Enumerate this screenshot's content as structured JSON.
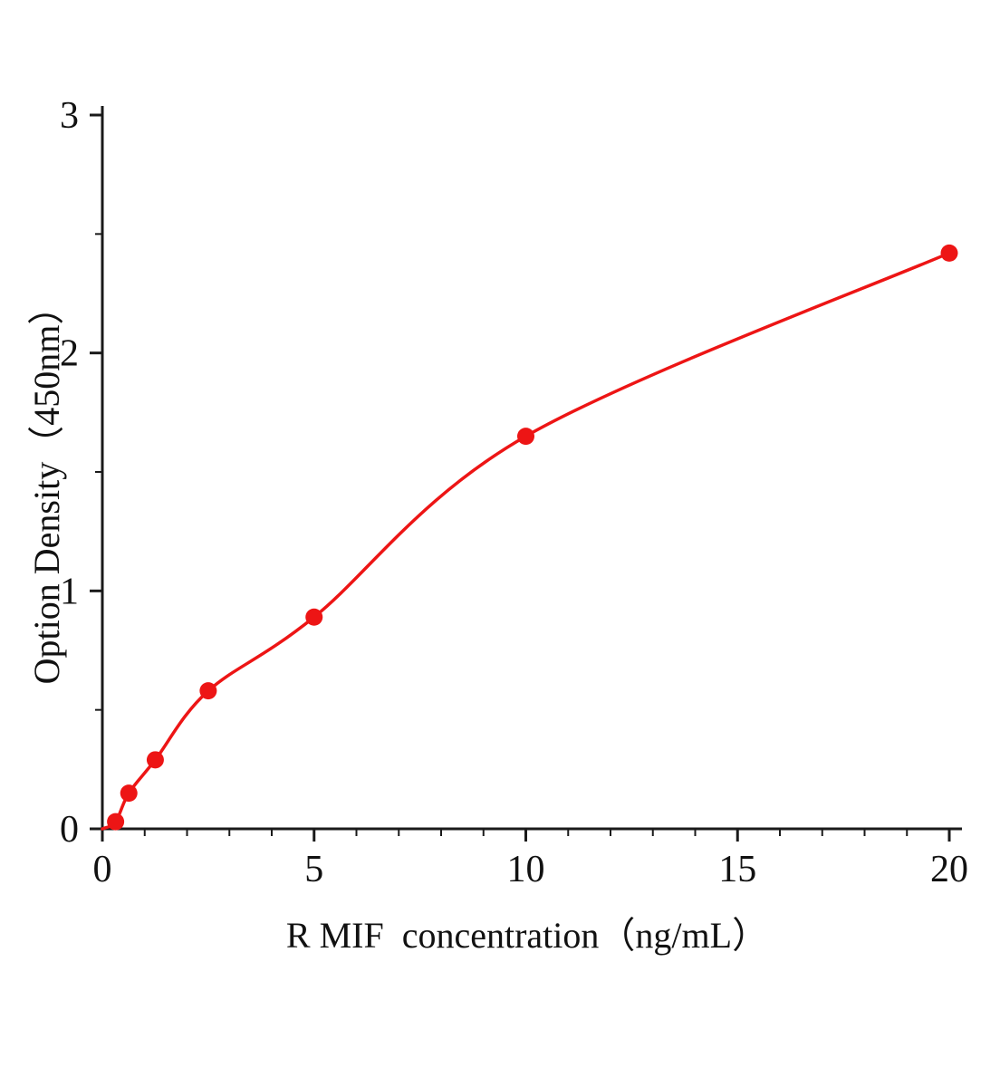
{
  "chart_data": {
    "type": "scatter",
    "title": "",
    "xlabel": "R MIF  concentration（ng/mL）",
    "ylabel": "Option Density（450nm）",
    "x": [
      0.3125,
      0.625,
      1.25,
      2.5,
      5,
      10,
      20
    ],
    "y": [
      0.03,
      0.15,
      0.29,
      0.58,
      0.89,
      1.65,
      2.42
    ],
    "fit_curve_start": [
      0,
      0
    ],
    "xlim": [
      0,
      20
    ],
    "ylim": [
      0,
      3
    ],
    "x_major_ticks": [
      0,
      5,
      10,
      15,
      20
    ],
    "y_major_ticks": [
      0,
      1,
      2,
      3
    ],
    "x_minor_step": 1,
    "y_minor_step": 0.5,
    "legend": "none",
    "grid": "off",
    "point_color": "#ed1515",
    "line_color": "#ed1515",
    "axis_color": "#1a1a1a",
    "tick_label_color": "#111111"
  }
}
